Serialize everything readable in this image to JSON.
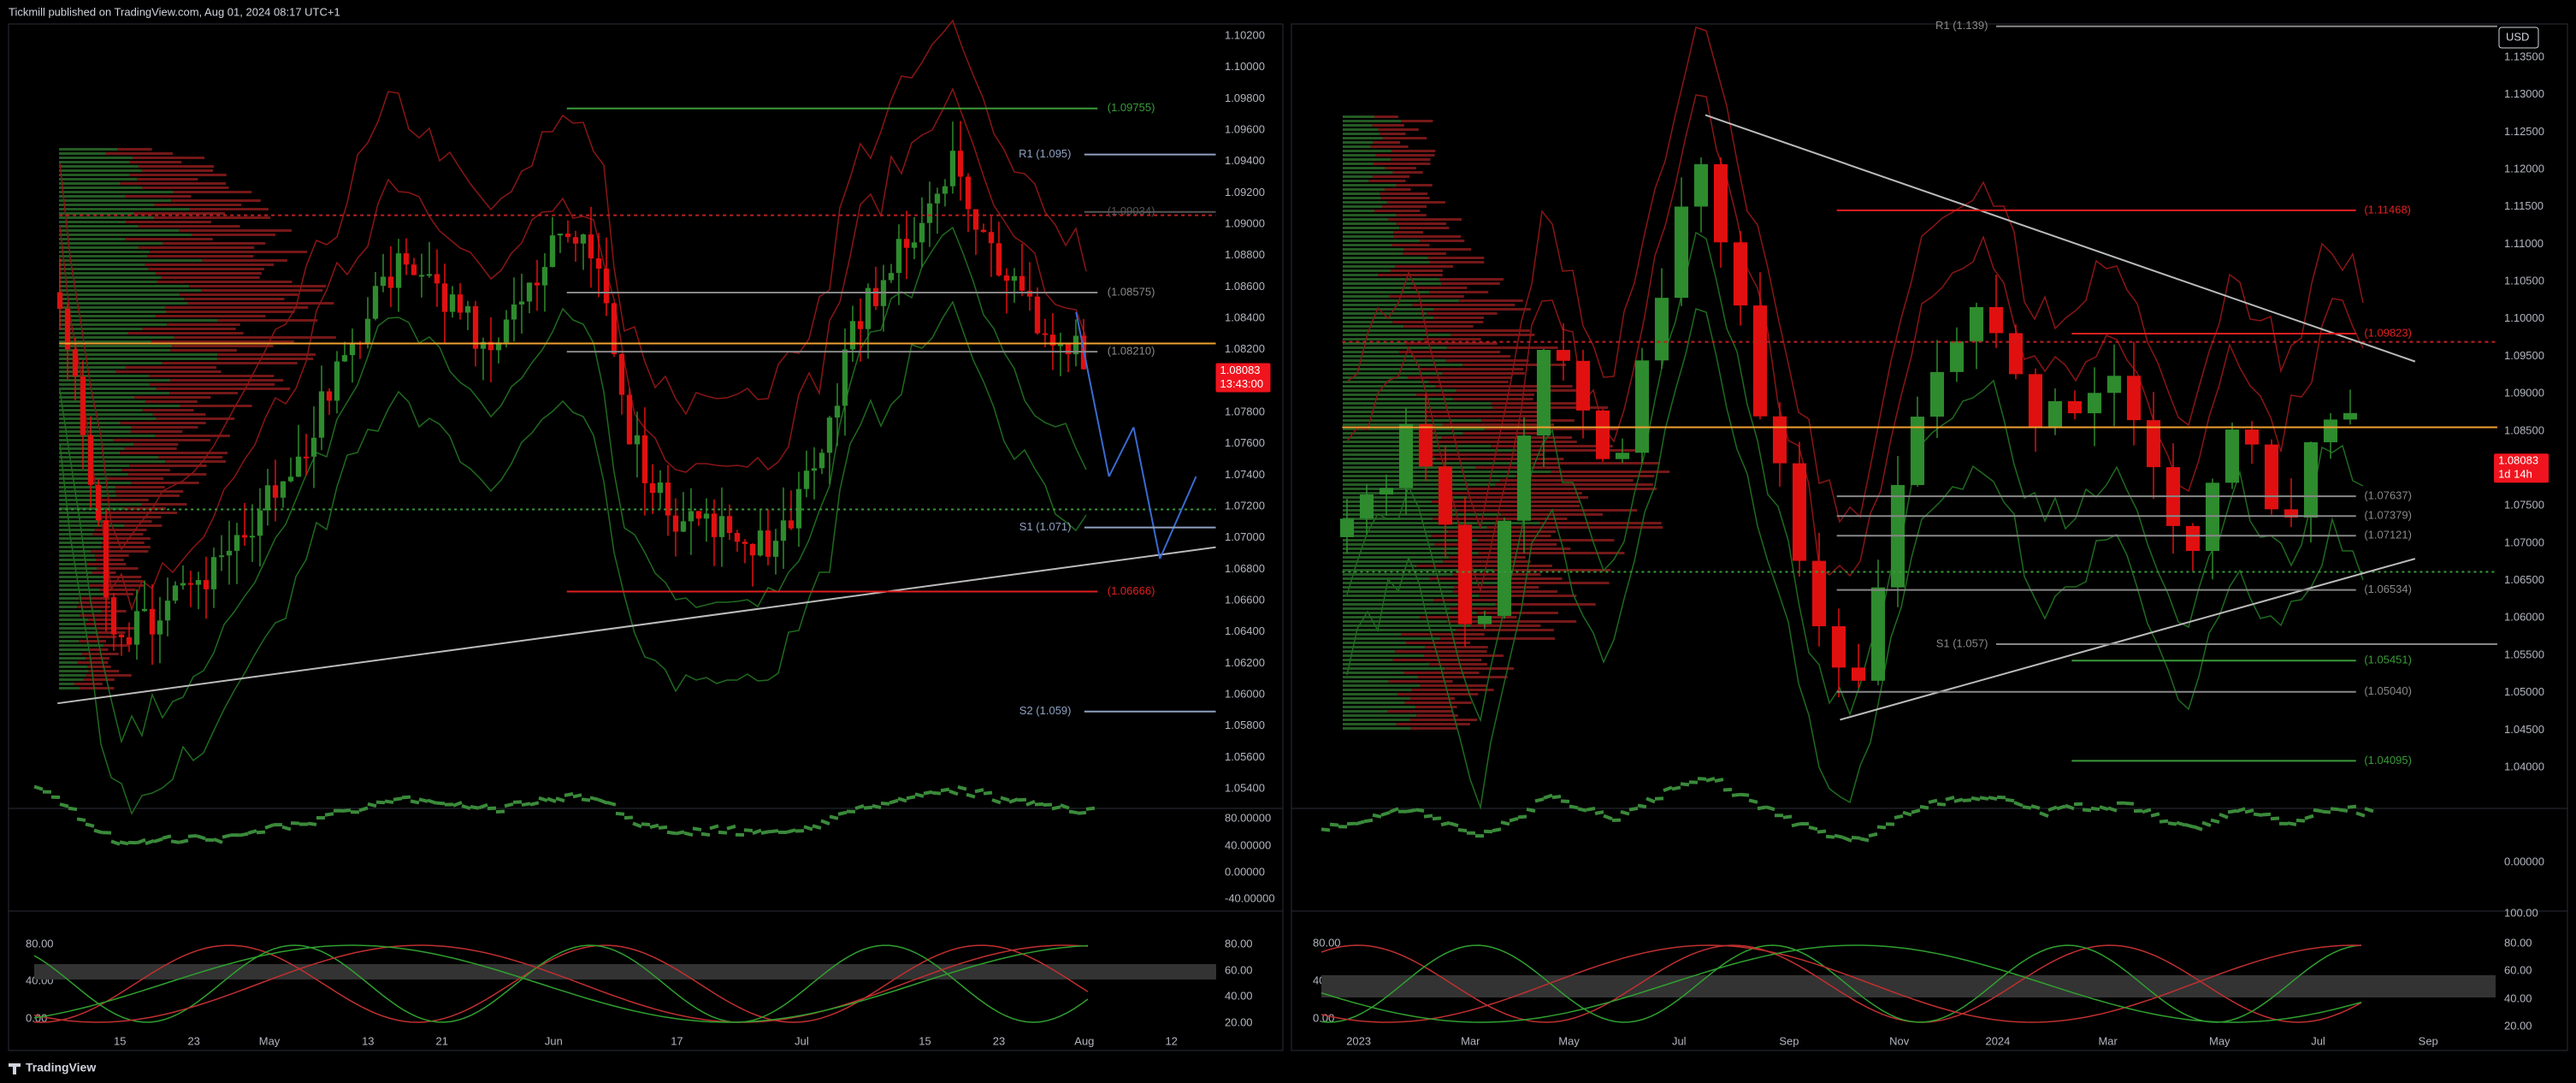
{
  "header": {
    "title": "Tickmill published on TradingView.com, Aug 01, 2024 08:17 UTC+1"
  },
  "left_chart": {
    "price_axis": [
      "1.10200",
      "1.10000",
      "1.09800",
      "1.09600",
      "1.09400",
      "1.09200",
      "1.09000",
      "1.08800",
      "1.08600",
      "1.08400",
      "1.08200",
      "1.08000",
      "1.07800",
      "1.07600",
      "1.07400",
      "1.07200",
      "1.07000",
      "1.06800",
      "1.06600",
      "1.06400",
      "1.06200",
      "1.06000",
      "1.05800",
      "1.05600",
      "1.05400"
    ],
    "osc1_axis": [
      "80.00000",
      "40.00000",
      "0.00000",
      "-40.00000"
    ],
    "osc2_left_axis": [
      "80.00",
      "40.00",
      "0.00"
    ],
    "osc2_right_axis": [
      "80.00",
      "60.00",
      "40.00",
      "20.00"
    ],
    "time_axis": [
      "15",
      "23",
      "May",
      "13",
      "21",
      "Jun",
      "17",
      "Jul",
      "15",
      "23",
      "Aug",
      "12"
    ],
    "levels": [
      "(1.09755)",
      "R1 (1.095)",
      "(1.09034)",
      "(1.08575)",
      "(1.08210)",
      "S1 (1.071)",
      "(1.06666)",
      "S2 (1.059)"
    ],
    "price_tag": {
      "price": "1.08083",
      "countdown": "13:43:00"
    }
  },
  "right_chart": {
    "currency": "USD",
    "price_axis": [
      "1.13500",
      "1.13000",
      "1.12500",
      "1.12000",
      "1.11500",
      "1.11000",
      "1.10500",
      "1.10000",
      "1.09500",
      "1.09000",
      "1.08500",
      "1.08000",
      "1.07500",
      "1.07000",
      "1.06500",
      "1.06000",
      "1.05500",
      "1.05000",
      "1.04500",
      "1.04000"
    ],
    "osc1_axis": [
      "0.00000"
    ],
    "osc2_left_axis": [
      "80.00",
      "40.00",
      "0.00"
    ],
    "osc2_right_axis": [
      "100.00",
      "80.00",
      "60.00",
      "40.00",
      "20.00"
    ],
    "time_axis": [
      "2023",
      "Mar",
      "May",
      "Jul",
      "Sep",
      "Nov",
      "2024",
      "Mar",
      "May",
      "Jul",
      "Sep"
    ],
    "levels": [
      "R1 (1.139)",
      "(1.11468)",
      "(1.09823)",
      "(1.07637)",
      "(1.07379)",
      "(1.07121)",
      "(1.06534)",
      "S1 (1.057)",
      "(1.05451)",
      "(1.05040)",
      "(1.04095)"
    ],
    "price_tag": {
      "price": "1.08083",
      "countdown": "1d 14h"
    }
  },
  "footer": {
    "brand": "TradingView"
  }
}
